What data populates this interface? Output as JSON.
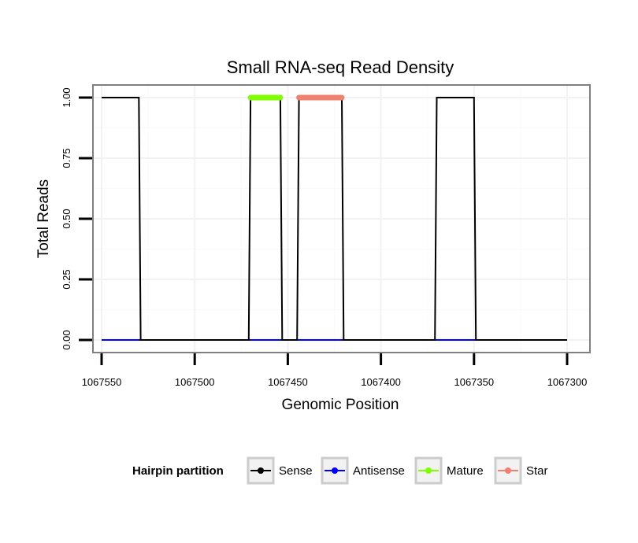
{
  "chart_data": {
    "type": "line",
    "title": "Small RNA-seq Read Density",
    "xlabel": "Genomic Position",
    "ylabel": "Total Reads",
    "x_reversed": true,
    "xlim": [
      1067550,
      1067300
    ],
    "ylim": [
      0,
      1
    ],
    "xticks": [
      1067550,
      1067500,
      1067450,
      1067400,
      1067350,
      1067300
    ],
    "xtick_labels": [
      "1067550",
      "1067500",
      "1067450",
      "1067400",
      "1067350",
      "1067300"
    ],
    "yticks": [
      0,
      0.25,
      0.5,
      0.75,
      1.0
    ],
    "ytick_labels": [
      "0.00",
      "0.25",
      "0.50",
      "0.75",
      "1.00"
    ],
    "grid": true,
    "legend_title": "Hairpin partition",
    "legend_position": "bottom",
    "series": [
      {
        "name": "Sense",
        "color": "#000000",
        "x": [
          1067550,
          1067530,
          1067529,
          1067471,
          1067470,
          1067454,
          1067453,
          1067445,
          1067444,
          1067421,
          1067420,
          1067371,
          1067370,
          1067350,
          1067349,
          1067300
        ],
        "y": [
          1,
          1,
          0,
          0,
          1,
          1,
          0,
          0,
          1,
          1,
          0,
          0,
          1,
          1,
          0,
          0
        ]
      },
      {
        "name": "Antisense",
        "color": "#0000ff",
        "x": [
          1067550,
          1067300
        ],
        "y": [
          0,
          0
        ]
      },
      {
        "name": "Mature",
        "color": "#80ff00",
        "x": [
          1067470,
          1067454
        ],
        "y": [
          1,
          1
        ]
      },
      {
        "name": "Star",
        "color": "#f08070",
        "x": [
          1067444,
          1067421
        ],
        "y": [
          1,
          1
        ]
      }
    ]
  }
}
